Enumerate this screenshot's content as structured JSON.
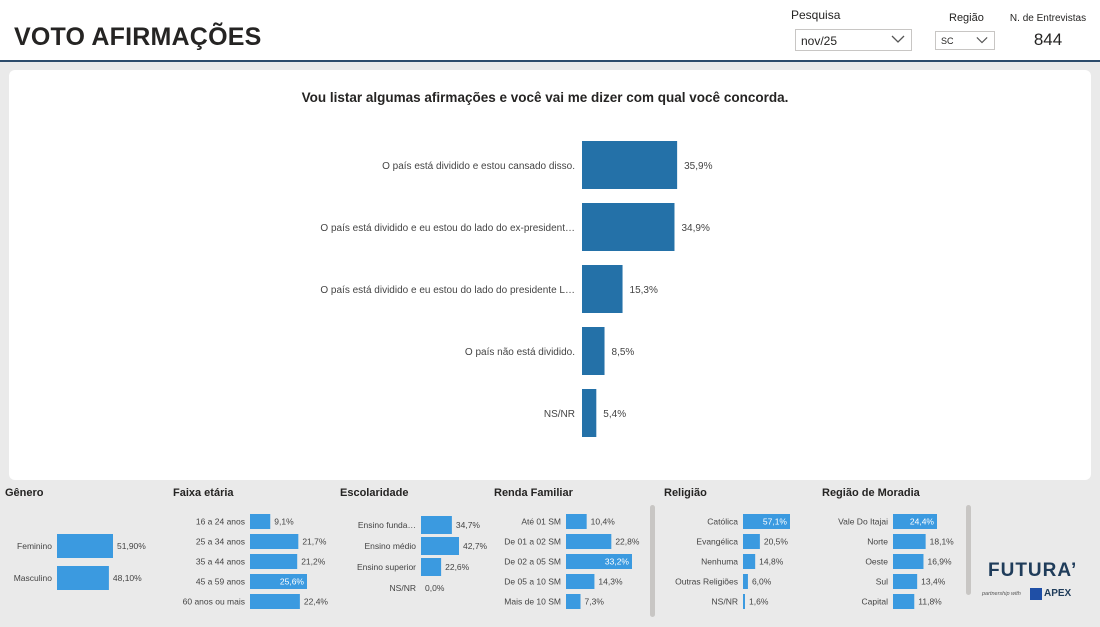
{
  "header": {
    "title": "VOTO AFIRMAÇÕES",
    "filters": {
      "pesquisa_label": "Pesquisa",
      "pesquisa_value": "nov/25",
      "regiao_label": "Região",
      "regiao_value": "SC"
    },
    "kpi": {
      "label": "N. de Entrevistas",
      "value": "844"
    }
  },
  "main": {
    "title": "Vou listar algumas afirmações e você vai me dizer com qual você concorda."
  },
  "colors": {
    "main_bar": "#2471a8",
    "small_bar": "#3b9ae0",
    "header_border": "#2d4c6c"
  },
  "chart_data": [
    {
      "id": "afirmacoes",
      "type": "bar",
      "orientation": "horizontal",
      "title": "Vou listar algumas afirmações e você vai me dizer com qual você concorda.",
      "categories": [
        "O país está dividido e estou cansado disso.",
        "O país está dividido e eu estou do lado do ex-president…",
        "O país está dividido e eu estou do lado do presidente L…",
        "O país não está dividido.",
        "NS/NR"
      ],
      "values": [
        35.9,
        34.9,
        15.3,
        8.5,
        5.4
      ],
      "labels": [
        "35,9%",
        "34,9%",
        "15,3%",
        "8,5%",
        "5,4%"
      ],
      "xlim": [
        0,
        100
      ]
    },
    {
      "id": "genero",
      "type": "bar",
      "orientation": "horizontal",
      "title": "Gênero",
      "categories": [
        "Feminino",
        "Masculino"
      ],
      "values": [
        51.9,
        48.1
      ],
      "labels": [
        "51,90%",
        "48,10%"
      ]
    },
    {
      "id": "faixa",
      "type": "bar",
      "orientation": "horizontal",
      "title": "Faixa etária",
      "categories": [
        "16 a 24 anos",
        "25 a 34 anos",
        "35 a 44 anos",
        "45 a 59 anos",
        "60 anos ou mais"
      ],
      "values": [
        9.1,
        21.7,
        21.2,
        25.6,
        22.4
      ],
      "labels": [
        "9,1%",
        "21,7%",
        "21,2%",
        "25,6%",
        "22,4%"
      ]
    },
    {
      "id": "escolaridade",
      "type": "bar",
      "orientation": "horizontal",
      "title": "Escolaridade",
      "categories": [
        "Ensino funda…",
        "Ensino médio",
        "Ensino superior",
        "NS/NR"
      ],
      "values": [
        34.7,
        42.7,
        22.6,
        0.0
      ],
      "labels": [
        "34,7%",
        "42,7%",
        "22,6%",
        "0,0%"
      ]
    },
    {
      "id": "renda",
      "type": "bar",
      "orientation": "horizontal",
      "title": "Renda Familiar",
      "categories": [
        "Até 01 SM",
        "De 01 a 02 SM",
        "De 02 a 05 SM",
        "De 05 a 10 SM",
        "Mais de 10 SM"
      ],
      "values": [
        10.4,
        22.8,
        33.2,
        14.3,
        7.3
      ],
      "labels": [
        "10,4%",
        "22,8%",
        "33,2%",
        "14,3%",
        "7,3%"
      ]
    },
    {
      "id": "religiao",
      "type": "bar",
      "orientation": "horizontal",
      "title": "Religião",
      "categories": [
        "Católica",
        "Evangélica",
        "Nenhuma",
        "Outras Religiões",
        "NS/NR"
      ],
      "values": [
        57.1,
        20.5,
        14.8,
        6.0,
        1.6
      ],
      "labels": [
        "57,1%",
        "20,5%",
        "14,8%",
        "6,0%",
        "1,6%"
      ]
    },
    {
      "id": "moradia",
      "type": "bar",
      "orientation": "horizontal",
      "title": "Região de Moradia",
      "categories": [
        "Vale Do Itajai",
        "Norte",
        "Oeste",
        "Sul",
        "Capital"
      ],
      "values": [
        24.4,
        18.1,
        16.9,
        13.4,
        11.8
      ],
      "labels": [
        "24,4%",
        "18,1%",
        "16,9%",
        "13,4%",
        "11,8%"
      ]
    }
  ],
  "logo": {
    "name": "FUTURA’",
    "sub": "partnership with",
    "brand": "APEX"
  }
}
